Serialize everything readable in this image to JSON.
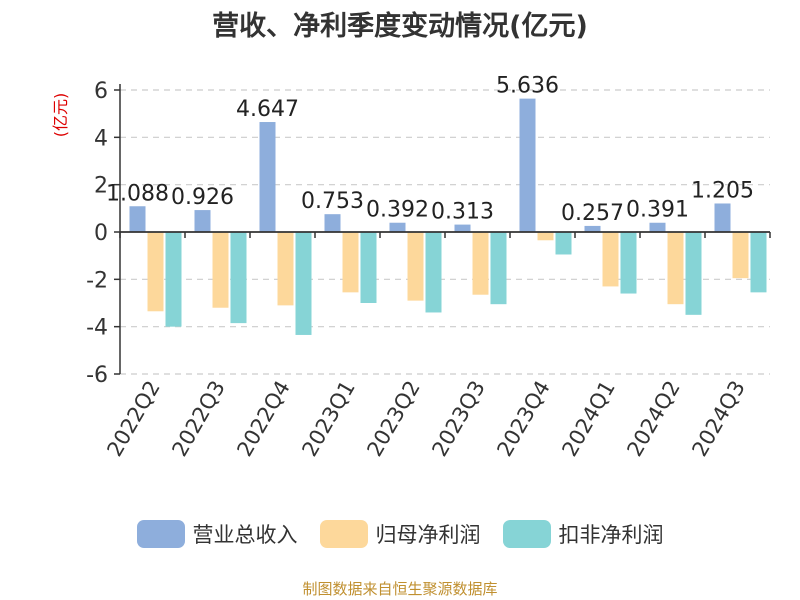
{
  "colors": {
    "revenue": "#8eaedc",
    "net_profit": "#fdd89b",
    "deducted_profit": "#86d4d6",
    "axis_unit": "#dd0000",
    "source_note": "#c09030",
    "grid": "#cccccc"
  },
  "chart_data": {
    "type": "bar",
    "title": "营收、净利季度变动情况(亿元)",
    "ylabel": "(亿元)",
    "xlabel": "",
    "ylim": [
      -6,
      6
    ],
    "yticks": [
      "6",
      "4",
      "2",
      "0",
      "-2",
      "-4",
      "-6"
    ],
    "grid": true,
    "legend_position": "bottom",
    "categories": [
      "2022Q2",
      "2022Q3",
      "2022Q4",
      "2023Q1",
      "2023Q2",
      "2023Q3",
      "2023Q4",
      "2024Q1",
      "2024Q2",
      "2024Q3"
    ],
    "series": [
      {
        "name": "营业总收入",
        "values": [
          1.088,
          0.926,
          4.647,
          0.753,
          0.392,
          0.313,
          5.636,
          0.257,
          0.391,
          1.205
        ],
        "labels": [
          "1.088",
          "0.926",
          "4.647",
          "0.753",
          "0.392",
          "0.313",
          "5.636",
          "0.257",
          "0.391",
          "1.205"
        ]
      },
      {
        "name": "归母净利润",
        "values": [
          -3.35,
          -3.2,
          -3.1,
          -2.55,
          -2.9,
          -2.65,
          -0.35,
          -2.3,
          -3.05,
          -1.95
        ]
      },
      {
        "name": "扣非净利润",
        "values": [
          -4.0,
          -3.85,
          -4.35,
          -3.0,
          -3.4,
          -3.05,
          -0.95,
          -2.6,
          -3.5,
          -2.55
        ]
      }
    ]
  },
  "source_note": "制图数据来自恒生聚源数据库"
}
